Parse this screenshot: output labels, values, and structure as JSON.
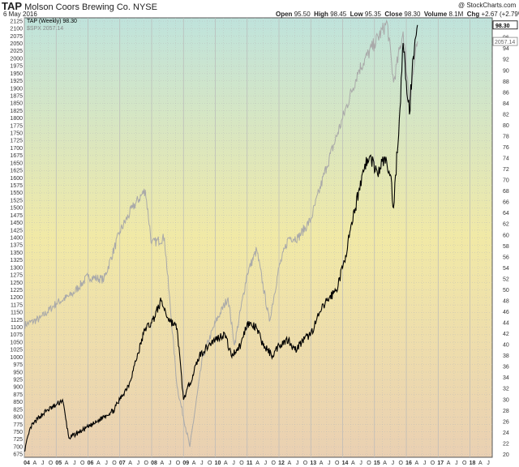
{
  "header": {
    "symbol": "TAP",
    "company": "Molson Coors Brewing Co.",
    "exchange": "NYSE",
    "date": "6 May 2016",
    "watermark": "@ StockCharts.com",
    "quote": {
      "open_label": "Open",
      "open": "95.50",
      "high_label": "High",
      "high": "98.45",
      "low_label": "Low",
      "low": "95.35",
      "close_label": "Close",
      "close": "98.30",
      "volume_label": "Volume",
      "volume": "8.1M",
      "chg_label": "Chg",
      "chg": "+2.67 (+2.79%)"
    }
  },
  "colors": {
    "bg_top": "#bfe3dc",
    "bg_mid": "#f1e9a6",
    "bg_bottom": "#ead0b2",
    "primary": "#000000",
    "comparison": "#a9a9a9",
    "grid": "#b9b9b9"
  },
  "chart_data": {
    "type": "line",
    "grid": true,
    "series": [
      {
        "name": "TAP (Weekly) 98.30",
        "axis": "right",
        "last_label": "98.30",
        "points": [
          [
            2004.0,
            20.6
          ],
          [
            2004.2,
            25
          ],
          [
            2004.5,
            27
          ],
          [
            2004.7,
            28
          ],
          [
            2005.0,
            29
          ],
          [
            2005.2,
            30
          ],
          [
            2005.4,
            23
          ],
          [
            2005.7,
            24
          ],
          [
            2006.0,
            25
          ],
          [
            2006.3,
            26
          ],
          [
            2006.5,
            27
          ],
          [
            2006.8,
            28
          ],
          [
            2007.0,
            30
          ],
          [
            2007.3,
            33
          ],
          [
            2007.5,
            37
          ],
          [
            2007.8,
            43
          ],
          [
            2008.0,
            44
          ],
          [
            2008.3,
            48
          ],
          [
            2008.5,
            45
          ],
          [
            2008.8,
            43
          ],
          [
            2009.0,
            30
          ],
          [
            2009.2,
            33
          ],
          [
            2009.5,
            38
          ],
          [
            2009.8,
            40
          ],
          [
            2010.0,
            41
          ],
          [
            2010.3,
            42
          ],
          [
            2010.5,
            38
          ],
          [
            2010.8,
            40
          ],
          [
            2011.0,
            44
          ],
          [
            2011.3,
            43
          ],
          [
            2011.5,
            40
          ],
          [
            2011.8,
            38
          ],
          [
            2012.0,
            40
          ],
          [
            2012.3,
            41
          ],
          [
            2012.5,
            39
          ],
          [
            2012.8,
            41
          ],
          [
            2013.0,
            42
          ],
          [
            2013.3,
            46
          ],
          [
            2013.5,
            48
          ],
          [
            2013.8,
            50
          ],
          [
            2014.0,
            54
          ],
          [
            2014.3,
            62
          ],
          [
            2014.5,
            68
          ],
          [
            2014.7,
            73
          ],
          [
            2014.9,
            74
          ],
          [
            2015.1,
            71
          ],
          [
            2015.3,
            74
          ],
          [
            2015.5,
            71
          ],
          [
            2015.6,
            65
          ],
          [
            2015.8,
            83
          ],
          [
            2015.9,
            95
          ],
          [
            2016.0,
            88
          ],
          [
            2016.1,
            82
          ],
          [
            2016.2,
            92
          ],
          [
            2016.35,
            98.3
          ]
        ]
      },
      {
        "name": "$SPX 2057.14",
        "axis": "left",
        "last_label": "2057.14",
        "points": [
          [
            2004.0,
            1108
          ],
          [
            2004.5,
            1130
          ],
          [
            2005.0,
            1180
          ],
          [
            2005.5,
            1210
          ],
          [
            2006.0,
            1270
          ],
          [
            2006.5,
            1260
          ],
          [
            2007.0,
            1420
          ],
          [
            2007.4,
            1500
          ],
          [
            2007.8,
            1560
          ],
          [
            2008.0,
            1380
          ],
          [
            2008.4,
            1400
          ],
          [
            2008.8,
            900
          ],
          [
            2009.2,
            700
          ],
          [
            2009.6,
            1000
          ],
          [
            2010.0,
            1115
          ],
          [
            2010.4,
            1200
          ],
          [
            2010.6,
            1040
          ],
          [
            2011.0,
            1280
          ],
          [
            2011.3,
            1360
          ],
          [
            2011.7,
            1120
          ],
          [
            2012.0,
            1300
          ],
          [
            2012.3,
            1400
          ],
          [
            2012.6,
            1400
          ],
          [
            2013.0,
            1460
          ],
          [
            2013.5,
            1640
          ],
          [
            2014.0,
            1800
          ],
          [
            2014.5,
            1960
          ],
          [
            2015.0,
            2050
          ],
          [
            2015.4,
            2120
          ],
          [
            2015.6,
            1920
          ],
          [
            2015.9,
            2090
          ],
          [
            2016.1,
            1860
          ],
          [
            2016.35,
            2057
          ]
        ]
      }
    ],
    "x_range": [
      2004.0,
      2018.7
    ],
    "x_ticks": [
      {
        "v": 2004.0,
        "label": "04",
        "year": true
      },
      {
        "v": 2004.25,
        "label": "A"
      },
      {
        "v": 2004.5,
        "label": "J"
      },
      {
        "v": 2004.75,
        "label": "O"
      },
      {
        "v": 2005.0,
        "label": "05",
        "year": true
      },
      {
        "v": 2005.25,
        "label": "A"
      },
      {
        "v": 2005.5,
        "label": "J"
      },
      {
        "v": 2005.75,
        "label": "O"
      },
      {
        "v": 2006.0,
        "label": "06",
        "year": true
      },
      {
        "v": 2006.25,
        "label": "A"
      },
      {
        "v": 2006.5,
        "label": "J"
      },
      {
        "v": 2006.75,
        "label": "O"
      },
      {
        "v": 2007.0,
        "label": "07",
        "year": true
      },
      {
        "v": 2007.25,
        "label": "A"
      },
      {
        "v": 2007.5,
        "label": "J"
      },
      {
        "v": 2007.75,
        "label": "O"
      },
      {
        "v": 2008.0,
        "label": "08",
        "year": true
      },
      {
        "v": 2008.25,
        "label": "A"
      },
      {
        "v": 2008.5,
        "label": "J"
      },
      {
        "v": 2008.75,
        "label": "O"
      },
      {
        "v": 2009.0,
        "label": "09",
        "year": true
      },
      {
        "v": 2009.25,
        "label": "A"
      },
      {
        "v": 2009.5,
        "label": "J"
      },
      {
        "v": 2009.75,
        "label": "O"
      },
      {
        "v": 2010.0,
        "label": "10",
        "year": true
      },
      {
        "v": 2010.25,
        "label": "A"
      },
      {
        "v": 2010.5,
        "label": "J"
      },
      {
        "v": 2010.75,
        "label": "O"
      },
      {
        "v": 2011.0,
        "label": "11",
        "year": true
      },
      {
        "v": 2011.25,
        "label": "A"
      },
      {
        "v": 2011.5,
        "label": "J"
      },
      {
        "v": 2011.75,
        "label": "O"
      },
      {
        "v": 2012.0,
        "label": "12",
        "year": true
      },
      {
        "v": 2012.25,
        "label": "A"
      },
      {
        "v": 2012.5,
        "label": "J"
      },
      {
        "v": 2012.75,
        "label": "O"
      },
      {
        "v": 2013.0,
        "label": "13",
        "year": true
      },
      {
        "v": 2013.25,
        "label": "A"
      },
      {
        "v": 2013.5,
        "label": "J"
      },
      {
        "v": 2013.75,
        "label": "O"
      },
      {
        "v": 2014.0,
        "label": "14",
        "year": true
      },
      {
        "v": 2014.25,
        "label": "A"
      },
      {
        "v": 2014.5,
        "label": "J"
      },
      {
        "v": 2014.75,
        "label": "O"
      },
      {
        "v": 2015.0,
        "label": "15",
        "year": true
      },
      {
        "v": 2015.25,
        "label": "A"
      },
      {
        "v": 2015.5,
        "label": "J"
      },
      {
        "v": 2015.75,
        "label": "O"
      },
      {
        "v": 2016.0,
        "label": "16",
        "year": true
      },
      {
        "v": 2016.25,
        "label": "A"
      },
      {
        "v": 2016.5,
        "label": "J"
      },
      {
        "v": 2016.75,
        "label": "O"
      },
      {
        "v": 2017.0,
        "label": "17",
        "year": true
      },
      {
        "v": 2017.25,
        "label": "A"
      },
      {
        "v": 2017.5,
        "label": "J"
      },
      {
        "v": 2017.75,
        "label": "O"
      },
      {
        "v": 2018.0,
        "label": "18",
        "year": true
      },
      {
        "v": 2018.25,
        "label": "A"
      },
      {
        "v": 2018.5,
        "label": "J"
      }
    ],
    "y_left": {
      "range": [
        665,
        2136
      ],
      "ticks": [
        675,
        700,
        725,
        750,
        775,
        800,
        825,
        850,
        875,
        900,
        925,
        950,
        975,
        1000,
        1025,
        1050,
        1075,
        1100,
        1125,
        1150,
        1175,
        1200,
        1225,
        1250,
        1275,
        1300,
        1325,
        1350,
        1375,
        1400,
        1425,
        1450,
        1475,
        1500,
        1525,
        1550,
        1575,
        1600,
        1625,
        1650,
        1675,
        1700,
        1725,
        1750,
        1775,
        1800,
        1825,
        1850,
        1875,
        1900,
        1925,
        1950,
        1975,
        2000,
        2025,
        2050,
        2075,
        2100,
        2125
      ]
    },
    "y_right": {
      "range": [
        19.5,
        99.6
      ],
      "ticks": [
        20,
        22,
        24,
        26,
        28,
        30,
        32,
        34,
        36,
        38,
        40,
        42,
        44,
        46,
        48,
        50,
        52,
        54,
        56,
        58,
        60,
        62,
        64,
        66,
        68,
        70,
        72,
        74,
        76,
        78,
        80,
        82,
        84,
        86,
        88,
        90,
        92,
        94,
        96
      ]
    }
  }
}
